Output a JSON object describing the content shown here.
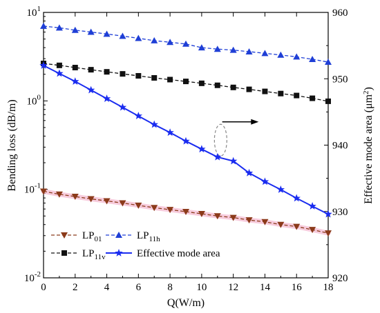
{
  "chart_data": {
    "type": "line",
    "xlabel": "Q(W/m)",
    "ylabel_left": "Bending loss (dB/m)",
    "ylabel_right": "Effective mode area (μm²)",
    "ylabel_right_base": "Effective mode area (μm",
    "ylabel_right_sup": "2",
    "ylabel_right_close": ")",
    "xlim": [
      0,
      18
    ],
    "x_ticks": [
      "0",
      "2",
      "4",
      "6",
      "8",
      "10",
      "12",
      "14",
      "16",
      "18"
    ],
    "ylim_left": [
      0.01,
      10
    ],
    "left_scale": "log",
    "y_left_ticks": [
      {
        "value": 0.01,
        "base": "10",
        "exp": "-2"
      },
      {
        "value": 0.1,
        "base": "10",
        "exp": "-1"
      },
      {
        "value": 1,
        "base": "10",
        "exp": "0"
      },
      {
        "value": 10,
        "base": "10",
        "exp": "1"
      }
    ],
    "ylim_right": [
      920,
      960
    ],
    "y_right_ticks": [
      "920",
      "930",
      "940",
      "950",
      "960"
    ],
    "grid": false,
    "legend_position": "bottom-left",
    "x": [
      0,
      1,
      2,
      3,
      4,
      5,
      6,
      7,
      8,
      9,
      10,
      11,
      12,
      13,
      14,
      15,
      16,
      17,
      18
    ],
    "series": [
      {
        "name": "LP01",
        "label_base": "LP",
        "label_sub": "01",
        "axis": "left",
        "marker": "triangle-down",
        "line": "dashed",
        "color": "#8b3a1a",
        "values": [
          0.095,
          0.088,
          0.083,
          0.078,
          0.074,
          0.07,
          0.066,
          0.062,
          0.059,
          0.056,
          0.053,
          0.05,
          0.048,
          0.045,
          0.043,
          0.04,
          0.038,
          0.035,
          0.032
        ]
      },
      {
        "name": "LP11h",
        "label_base": "LP",
        "label_sub": "11h",
        "axis": "left",
        "marker": "triangle-up",
        "line": "dashed",
        "color": "#1f3fd6",
        "values": [
          7.0,
          6.7,
          6.3,
          6.0,
          5.7,
          5.4,
          5.1,
          4.8,
          4.6,
          4.4,
          4.0,
          3.85,
          3.75,
          3.6,
          3.45,
          3.3,
          3.15,
          2.95,
          2.75
        ]
      },
      {
        "name": "LP11v",
        "label_base": "LP",
        "label_sub": "11v",
        "axis": "left",
        "marker": "square",
        "line": "dashed",
        "color": "#111111",
        "values": [
          2.65,
          2.52,
          2.38,
          2.25,
          2.13,
          2.02,
          1.92,
          1.82,
          1.74,
          1.66,
          1.58,
          1.5,
          1.42,
          1.35,
          1.28,
          1.21,
          1.15,
          1.07,
          0.99
        ]
      },
      {
        "name": "Effective mode area",
        "label_base": "Effective mode area",
        "label_sub": "",
        "axis": "right",
        "marker": "star",
        "line": "solid",
        "color": "#1a2cf0",
        "values": [
          952.0,
          950.8,
          949.6,
          948.3,
          947.0,
          945.7,
          944.4,
          943.1,
          941.9,
          940.6,
          939.4,
          938.2,
          937.6,
          935.8,
          934.5,
          933.3,
          932.0,
          930.8,
          929.6
        ]
      }
    ],
    "annotations": [
      {
        "type": "ellipse",
        "x": 11.2,
        "y_left": 0.36
      },
      {
        "type": "arrow",
        "direction": "right",
        "from_x": 11.3,
        "to_x": 13.6,
        "y_left": 0.58
      }
    ]
  }
}
